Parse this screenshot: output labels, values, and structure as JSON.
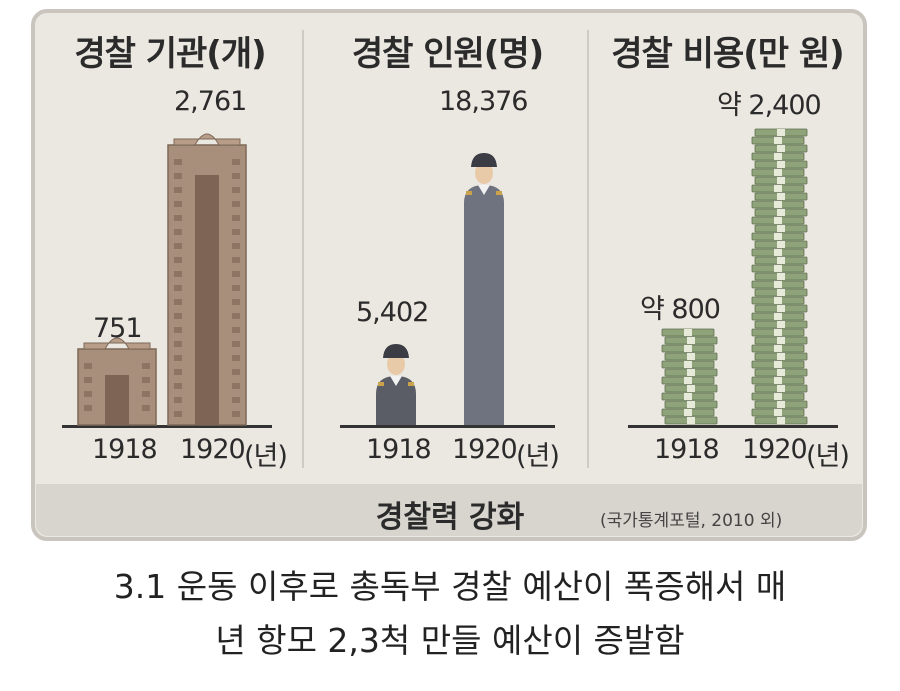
{
  "chart_data": [
    {
      "type": "bar",
      "title": "경찰 기관(개)",
      "categories": [
        "1918",
        "1920"
      ],
      "values": [
        751,
        2761
      ],
      "value_labels": [
        "751",
        "2,761"
      ],
      "unit_label": "(년)",
      "mark": "building"
    },
    {
      "type": "bar",
      "title": "경찰 인원(명)",
      "categories": [
        "1918",
        "1920"
      ],
      "values": [
        5402,
        18376
      ],
      "value_labels": [
        "5,402",
        "18,376"
      ],
      "unit_label": "(년)",
      "mark": "police-officer"
    },
    {
      "type": "bar",
      "title": "경찰 비용(만 원)",
      "categories": [
        "1918",
        "1920"
      ],
      "values": [
        800,
        2400
      ],
      "value_labels": [
        "약 800",
        "약 2,400"
      ],
      "unit_label": "(년)",
      "mark": "money-stack"
    }
  ],
  "footer": {
    "title": "경찰력 강화",
    "source": "(국가통계포털, 2010 외)"
  },
  "caption": {
    "line1": "3.1 운동 이후로 총독부 경찰 예산이 폭증해서 매",
    "line2": "년 항모 2,3척 만들 예산이 증발함"
  },
  "colors": {
    "building": "#a88f7b",
    "officer_body": "#5a5c66",
    "money": "#8fa37a"
  }
}
